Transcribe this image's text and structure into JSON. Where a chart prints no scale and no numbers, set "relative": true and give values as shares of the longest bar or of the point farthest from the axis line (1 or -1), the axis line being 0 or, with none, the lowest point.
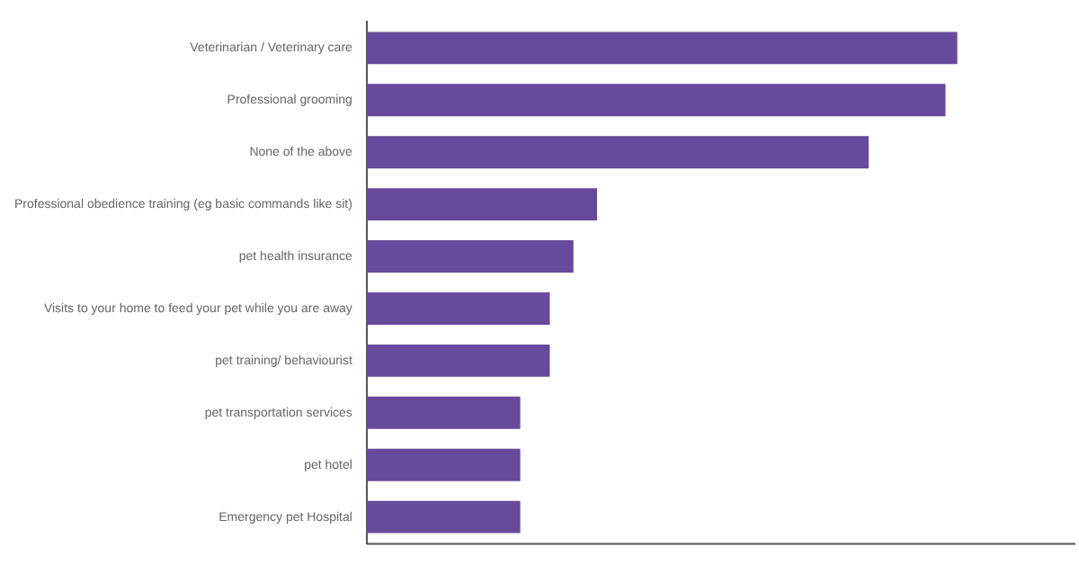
{
  "chart_data": {
    "type": "bar",
    "orientation": "horizontal",
    "relative": true,
    "categories": [
      "Veterinarian / Veterinary care",
      "Professional grooming",
      "None of the above",
      "Professional obedience training (eg basic commands like sit)",
      "pet health insurance",
      "Visits to your home to feed your pet while you are away",
      "pet training/ behaviourist",
      "pet transportation services",
      "pet hotel",
      "Emergency pet Hospital"
    ],
    "values": [
      1,
      0.98,
      0.85,
      0.39,
      0.35,
      0.31,
      0.31,
      0.26,
      0.26,
      0.26
    ],
    "color": "#674a9c"
  }
}
